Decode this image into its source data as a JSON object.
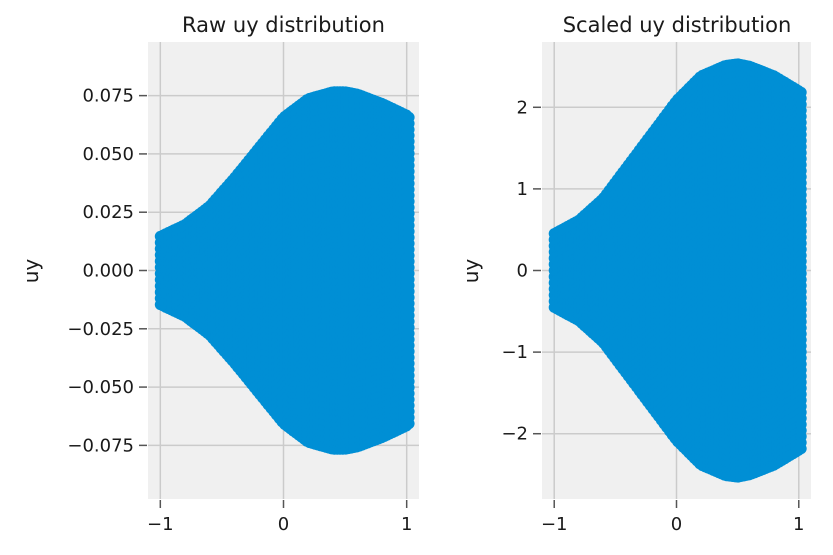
{
  "chart_data": [
    {
      "type": "scatter",
      "title": "Raw uy distribution",
      "xlabel": "",
      "ylabel": "uy",
      "xlim": [
        -1.1,
        1.1
      ],
      "ylim": [
        -0.098,
        0.098
      ],
      "xticks": [
        -1,
        0,
        1
      ],
      "xtick_labels": [
        "−1",
        "0",
        "1"
      ],
      "yticks": [
        0.075,
        0.05,
        0.025,
        0,
        -0.025,
        -0.05,
        -0.075
      ],
      "ytick_labels": [
        "0.075",
        "0.050",
        "0.025",
        "0.000",
        "−0.025",
        "−0.050",
        "−0.075"
      ],
      "grid": true,
      "color": "#008fd5",
      "envelope": {
        "x": [
          -1.0,
          -0.8,
          -0.6,
          -0.4,
          -0.2,
          0.0,
          0.2,
          0.4,
          0.5,
          0.6,
          0.8,
          1.0,
          1.02
        ],
        "upper": [
          0.017,
          0.022,
          0.03,
          0.042,
          0.055,
          0.068,
          0.076,
          0.079,
          0.079,
          0.078,
          0.074,
          0.069,
          0.068
        ],
        "lower": [
          -0.017,
          -0.022,
          -0.03,
          -0.042,
          -0.055,
          -0.068,
          -0.076,
          -0.079,
          -0.079,
          -0.078,
          -0.074,
          -0.069,
          -0.068
        ]
      }
    },
    {
      "type": "scatter",
      "title": "Scaled uy distribution",
      "xlabel": "",
      "ylabel": "uy",
      "xlim": [
        -1.1,
        1.1
      ],
      "ylim": [
        -2.8,
        2.8
      ],
      "xticks": [
        -1,
        0,
        1
      ],
      "xtick_labels": [
        "−1",
        "0",
        "1"
      ],
      "yticks": [
        2,
        1,
        0,
        -1,
        -2
      ],
      "ytick_labels": [
        "2",
        "1",
        "0",
        "−1",
        "−2"
      ],
      "grid": true,
      "color": "#008fd5",
      "envelope": {
        "x": [
          -1.0,
          -0.8,
          -0.6,
          -0.4,
          -0.2,
          0.0,
          0.2,
          0.4,
          0.5,
          0.6,
          0.8,
          1.0,
          1.02
        ],
        "upper": [
          0.52,
          0.68,
          0.95,
          1.35,
          1.75,
          2.15,
          2.45,
          2.58,
          2.6,
          2.57,
          2.45,
          2.27,
          2.25
        ],
        "lower": [
          -0.52,
          -0.68,
          -0.95,
          -1.35,
          -1.75,
          -2.15,
          -2.45,
          -2.58,
          -2.6,
          -2.57,
          -2.45,
          -2.27,
          -2.25
        ]
      }
    }
  ]
}
